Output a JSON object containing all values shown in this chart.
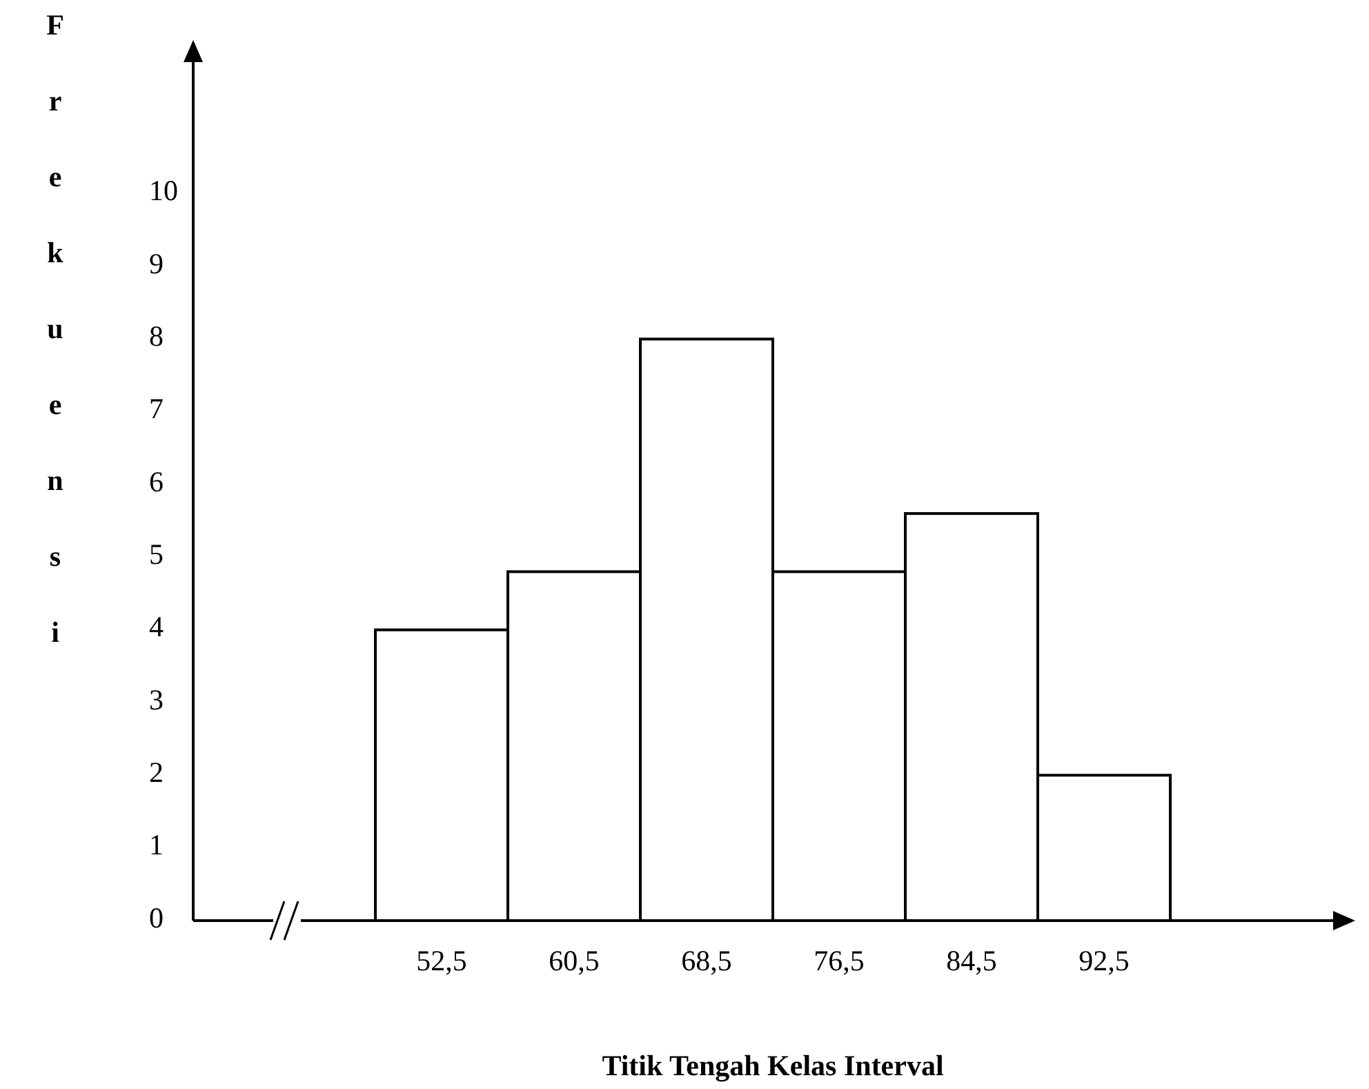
{
  "chart_data": {
    "type": "bar",
    "xlabel": "Titik Tengah Kelas Interval",
    "ylabel": "Frekuensi",
    "categories": [
      "52,5",
      "60,5",
      "68,5",
      "76,5",
      "84,5",
      "92,5"
    ],
    "values": [
      4,
      4.8,
      8,
      4.8,
      5.6,
      2
    ],
    "color": "#ffffff",
    "ylim": [
      0,
      12
    ],
    "yticks": [
      0,
      1,
      2,
      3,
      4,
      5,
      6,
      7,
      8,
      9,
      10
    ]
  }
}
